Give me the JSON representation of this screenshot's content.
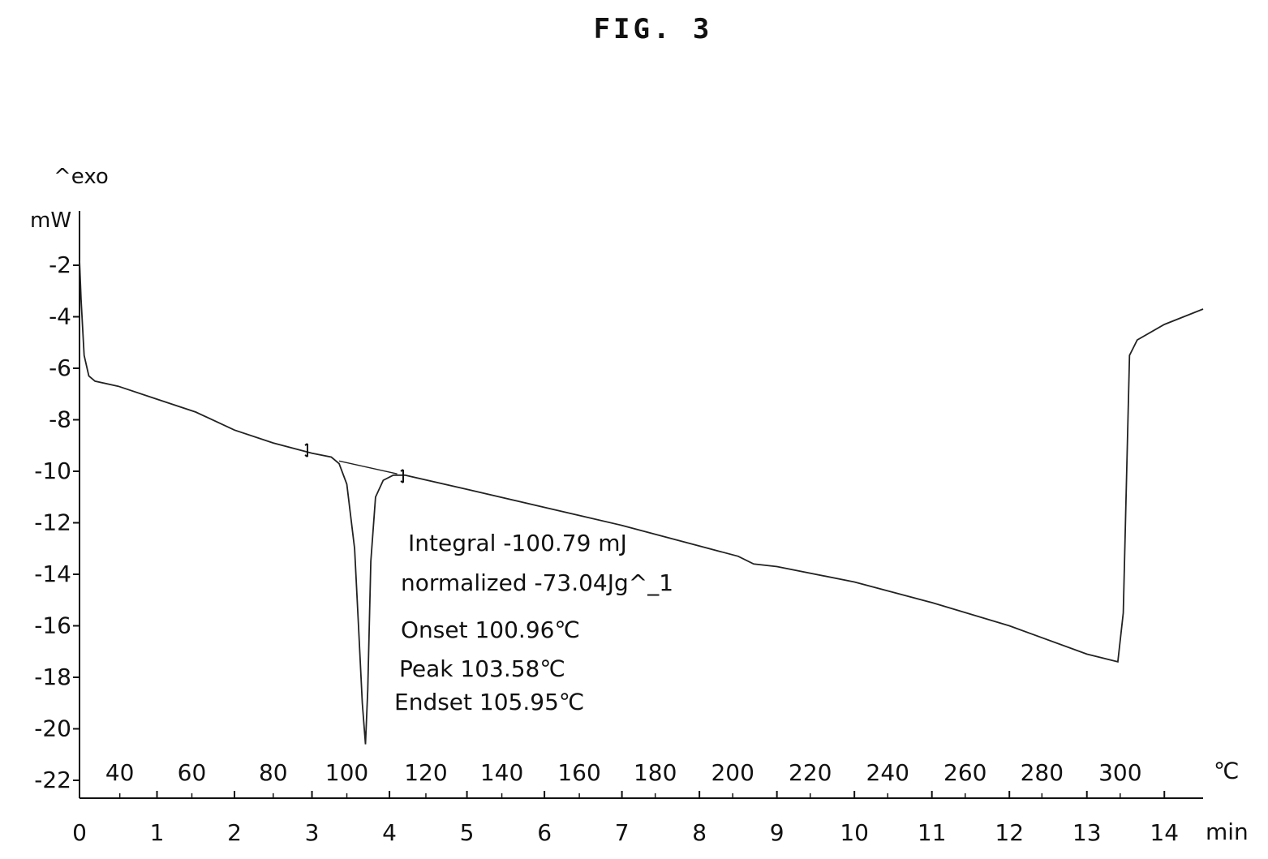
{
  "figure": {
    "label": "FIG. 3"
  },
  "chart_data": {
    "type": "line",
    "title": "",
    "y_unit_label": "mW",
    "y_direction_label": "^exo",
    "x_unit_label": "min",
    "temp_unit_label": "℃",
    "xlim": [
      0,
      14.5
    ],
    "ylim": [
      -22,
      0
    ],
    "y_ticks": [
      -2,
      -4,
      -6,
      -8,
      -10,
      -12,
      -14,
      -16,
      -18,
      -20,
      -22
    ],
    "x_ticks": [
      0,
      1,
      2,
      3,
      4,
      5,
      6,
      7,
      8,
      9,
      10,
      11,
      12,
      13,
      14
    ],
    "temp_ticks": [
      {
        "label": "40",
        "x": 0.52
      },
      {
        "label": "60",
        "x": 1.45
      },
      {
        "label": "80",
        "x": 2.5
      },
      {
        "label": "100",
        "x": 3.45
      },
      {
        "label": "120",
        "x": 4.47
      },
      {
        "label": "140",
        "x": 5.45
      },
      {
        "label": "160",
        "x": 6.45
      },
      {
        "label": "180",
        "x": 7.43
      },
      {
        "label": "200",
        "x": 8.43
      },
      {
        "label": "220",
        "x": 9.43
      },
      {
        "label": "240",
        "x": 10.43
      },
      {
        "label": "260",
        "x": 11.43
      },
      {
        "label": "280",
        "x": 12.42
      },
      {
        "label": "300",
        "x": 13.43
      }
    ],
    "grid": false,
    "series": [
      {
        "x": [
          0,
          0.02,
          0.06,
          0.12,
          0.2,
          0.5,
          1,
          1.5,
          2,
          2.5,
          3,
          3.25,
          3.35,
          3.45,
          3.55,
          3.6,
          3.65,
          3.69,
          3.72,
          3.76,
          3.82,
          3.92,
          4.05,
          4.2,
          5,
          6,
          7,
          8,
          8.5,
          8.7,
          9,
          10,
          11,
          12,
          13,
          13.4,
          13.47,
          13.55,
          13.65,
          14,
          14.5
        ],
        "y": [
          -1.8,
          -3.3,
          -5.5,
          -6.3,
          -6.5,
          -6.7,
          -7.2,
          -7.7,
          -8.4,
          -8.9,
          -9.3,
          -9.45,
          -9.7,
          -10.5,
          -13,
          -16,
          -19,
          -20.6,
          -18.5,
          -13.5,
          -11,
          -10.35,
          -10.15,
          -10.15,
          -10.7,
          -11.4,
          -12.1,
          -12.9,
          -13.3,
          -13.6,
          -13.7,
          -14.3,
          -15.1,
          -16,
          -17.1,
          -17.4,
          -15.5,
          -5.5,
          -4.9,
          -4.3,
          -3.7
        ]
      }
    ],
    "integration_baseline": {
      "x": [
        3.35,
        4.1
      ],
      "y": [
        -9.6,
        -10.1
      ]
    },
    "annotations": {
      "integral": "Integral -100.79 mJ",
      "normalized": "normalized -73.04Jg^_1",
      "onset": "Onset 100.96℃",
      "peak": "Peak  103.58℃",
      "endset": "Endset 105.95℃"
    }
  }
}
